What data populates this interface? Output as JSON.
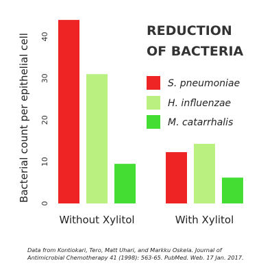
{
  "chart_data": {
    "type": "bar",
    "title": [
      "REDUCTION",
      "OF BACTERIA"
    ],
    "ylabel": "Bacterial count per epithelial cell",
    "xlabel": "",
    "ylim": [
      0,
      45
    ],
    "yticks": [
      0,
      10,
      20,
      30,
      40
    ],
    "categories": [
      "Without Xylitol",
      "With Xylitol"
    ],
    "series": [
      {
        "name": "S. pneumoniae",
        "color": "#ee2424",
        "values": [
          44,
          12.3
        ]
      },
      {
        "name": "H. influenzae",
        "color": "#b9f07f",
        "values": [
          31,
          14.3
        ]
      },
      {
        "name": "M. catarrhalis",
        "color": "#44dd33",
        "values": [
          9.5,
          6.2
        ]
      }
    ],
    "legend_position": "top-right",
    "grid": false
  },
  "source_note": "Data from Kontiokari, Tero, Matt Uhari, and Markku Oskela. Journal of Antimicrobial Chemotherapy 41 (1998): 563-65. PubMed. Web. 17 Jan. 2017."
}
